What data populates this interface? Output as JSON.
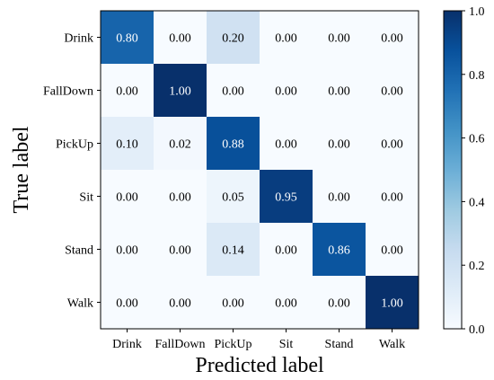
{
  "chart_data": {
    "type": "heatmap",
    "title": "",
    "xlabel": "Predicted label",
    "ylabel": "True label",
    "x_categories": [
      "Drink",
      "FallDown",
      "PickUp",
      "Sit",
      "Stand",
      "Walk"
    ],
    "y_categories": [
      "Drink",
      "FallDown",
      "PickUp",
      "Sit",
      "Stand",
      "Walk"
    ],
    "values": [
      [
        0.8,
        0.0,
        0.2,
        0.0,
        0.0,
        0.0
      ],
      [
        0.0,
        1.0,
        0.0,
        0.0,
        0.0,
        0.0
      ],
      [
        0.1,
        0.02,
        0.88,
        0.0,
        0.0,
        0.0
      ],
      [
        0.0,
        0.0,
        0.05,
        0.95,
        0.0,
        0.0
      ],
      [
        0.0,
        0.0,
        0.14,
        0.0,
        0.86,
        0.0
      ],
      [
        0.0,
        0.0,
        0.0,
        0.0,
        0.0,
        1.0
      ]
    ],
    "value_format": "0.00",
    "colormap": "Blues",
    "colors": {
      "low": "#f7fbff",
      "high": "#08306b",
      "text_on_light": "#000000",
      "text_on_dark": "#ffffff"
    },
    "colorbar": {
      "range": [
        0.0,
        1.0
      ],
      "ticks": [
        0.0,
        0.2,
        0.4,
        0.6,
        0.8,
        1.0
      ],
      "tick_labels": [
        "0.0",
        "0.2",
        "0.4",
        "0.6",
        "0.8",
        "1.0"
      ]
    }
  }
}
